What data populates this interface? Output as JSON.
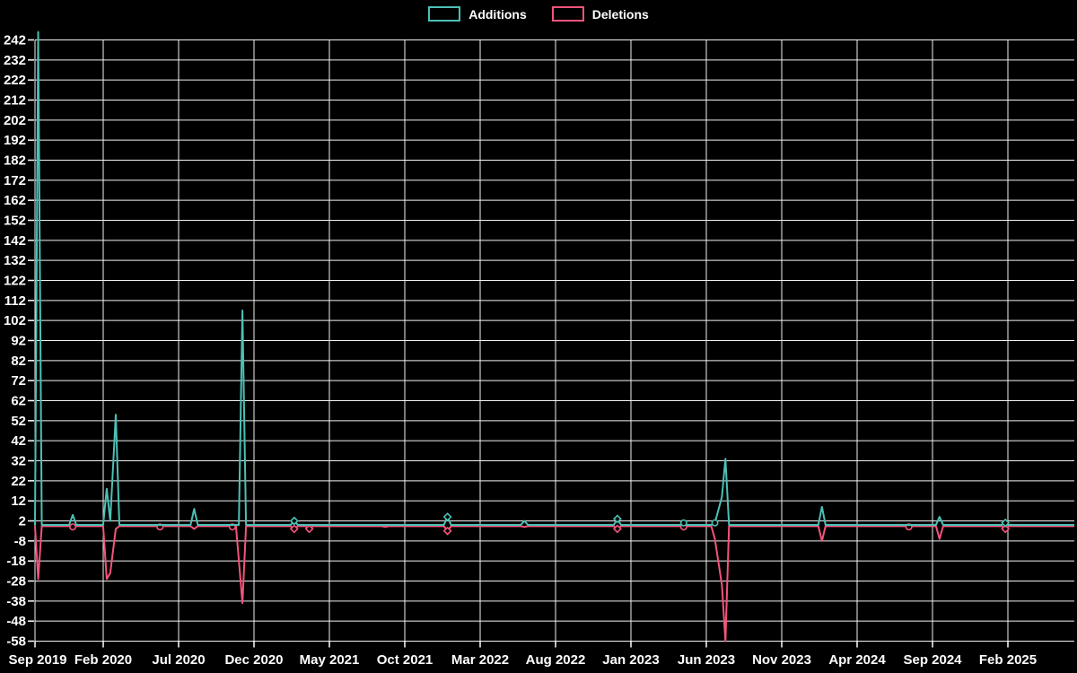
{
  "chart_data": {
    "type": "line",
    "title": "",
    "legend_position": "top-center",
    "background": "#000000",
    "grid": {
      "on": true,
      "color": "#f2f2f2"
    },
    "text_color": "#ffffff",
    "baseline": 0,
    "y_axis": {
      "min": -58,
      "max": 242,
      "ticks": [
        242,
        232,
        222,
        212,
        202,
        192,
        182,
        172,
        162,
        152,
        142,
        132,
        122,
        112,
        102,
        92,
        82,
        72,
        62,
        52,
        42,
        32,
        22,
        12,
        2,
        -8,
        -18,
        -28,
        -38,
        -48,
        -58
      ]
    },
    "x_axis": {
      "ticks": [
        "Sep 2019",
        "Feb 2020",
        "Jul 2020",
        "Dec 2020",
        "May 2021",
        "Oct 2021",
        "Mar 2022",
        "Aug 2022",
        "Jan 2023",
        "Jun 2023",
        "Nov 2023",
        "Apr 2024",
        "Sep 2024",
        "Feb 2025"
      ]
    },
    "series": [
      {
        "name": "Additions",
        "color": "#4cc0b5",
        "points": [
          {
            "date": "2019-09-08",
            "value": 246
          },
          {
            "date": "2019-11-24",
            "value": 5
          },
          {
            "date": "2020-02-08",
            "value": 18
          },
          {
            "date": "2020-02-15",
            "value": 2
          },
          {
            "date": "2020-02-26",
            "value": 55
          },
          {
            "date": "2020-08-02",
            "value": 8
          },
          {
            "date": "2020-11-08",
            "value": 107
          },
          {
            "date": "2021-02-21",
            "value": 2,
            "marker": "diamond"
          },
          {
            "date": "2021-12-26",
            "value": 4,
            "marker": "diamond"
          },
          {
            "date": "2022-05-29",
            "value": 2
          },
          {
            "date": "2022-12-04",
            "value": 3,
            "marker": "diamond"
          },
          {
            "date": "2023-04-16",
            "value": 1,
            "marker": "circle"
          },
          {
            "date": "2023-06-18",
            "value": 1,
            "marker": "circle"
          },
          {
            "date": "2023-07-02",
            "value": 14
          },
          {
            "date": "2023-07-09",
            "value": 33
          },
          {
            "date": "2024-01-21",
            "value": 9
          },
          {
            "date": "2024-09-15",
            "value": 4
          },
          {
            "date": "2025-01-26",
            "value": 1,
            "marker": "diamond"
          }
        ]
      },
      {
        "name": "Deletions",
        "color": "#f4547c",
        "points": [
          {
            "date": "2019-09-08",
            "value": -27
          },
          {
            "date": "2019-11-24",
            "value": -1,
            "marker": "circle"
          },
          {
            "date": "2020-02-08",
            "value": -27
          },
          {
            "date": "2020-02-15",
            "value": -24
          },
          {
            "date": "2020-02-26",
            "value": -2
          },
          {
            "date": "2020-05-24",
            "value": -1,
            "marker": "circle"
          },
          {
            "date": "2020-08-02",
            "value": -2
          },
          {
            "date": "2020-10-18",
            "value": -1,
            "marker": "circle"
          },
          {
            "date": "2020-11-08",
            "value": -39
          },
          {
            "date": "2021-02-21",
            "value": -2,
            "marker": "diamond"
          },
          {
            "date": "2021-03-21",
            "value": -2,
            "marker": "diamond"
          },
          {
            "date": "2021-08-22",
            "value": -1
          },
          {
            "date": "2021-12-26",
            "value": -3,
            "marker": "diamond"
          },
          {
            "date": "2022-05-29",
            "value": -1
          },
          {
            "date": "2022-12-04",
            "value": -2,
            "marker": "diamond"
          },
          {
            "date": "2023-04-16",
            "value": -1,
            "marker": "circle"
          },
          {
            "date": "2023-06-18",
            "value": -7
          },
          {
            "date": "2023-07-02",
            "value": -30
          },
          {
            "date": "2023-07-09",
            "value": -58
          },
          {
            "date": "2024-01-21",
            "value": -8
          },
          {
            "date": "2024-07-14",
            "value": -1,
            "marker": "circle"
          },
          {
            "date": "2024-09-15",
            "value": -7
          },
          {
            "date": "2025-01-26",
            "value": -2,
            "marker": "diamond"
          }
        ]
      }
    ]
  }
}
